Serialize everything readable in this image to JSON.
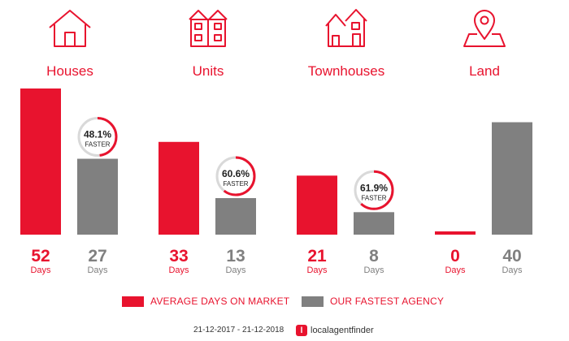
{
  "categories": [
    {
      "name": "Houses",
      "icon": "house-icon"
    },
    {
      "name": "Units",
      "icon": "units-icon"
    },
    {
      "name": "Townhouses",
      "icon": "townhouses-icon"
    },
    {
      "name": "Land",
      "icon": "land-pin-icon"
    }
  ],
  "chart_data": {
    "type": "bar",
    "categories": [
      "Houses",
      "Units",
      "Townhouses",
      "Land"
    ],
    "series": [
      {
        "name": "AVERAGE DAYS ON MARKET",
        "values": [
          52,
          33,
          21,
          0
        ],
        "color": "#e8132e"
      },
      {
        "name": "OUR FASTEST AGENCY",
        "values": [
          27,
          13,
          8,
          40
        ],
        "color": "#808080"
      }
    ],
    "unit_label": "Days",
    "faster": [
      {
        "category": "Houses",
        "value": "48.1%",
        "label": "FASTER"
      },
      {
        "category": "Units",
        "value": "60.6%",
        "label": "FASTER"
      },
      {
        "category": "Townhouses",
        "value": "61.9%",
        "label": "FASTER"
      }
    ],
    "ylim": [
      0,
      52
    ]
  },
  "legend": {
    "market": "AVERAGE DAYS ON MARKET",
    "agency": "OUR FASTEST AGENCY"
  },
  "footer": {
    "date_range": "21-12-2017 - 21-12-2018",
    "brand_mark": "l",
    "brand": "localagentfinder"
  },
  "colors": {
    "accent": "#e8132e",
    "gray": "#808080"
  }
}
